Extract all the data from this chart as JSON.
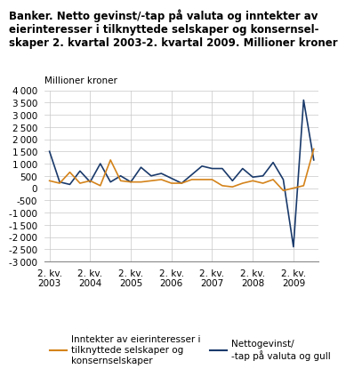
{
  "title_line1": "Banker. Netto gevinst/-tap på valuta og inntekter av",
  "title_line2": "eierinteresser i tilknyttede selskaper og konsernsel-",
  "title_line3": "skaper 2. kvartal 2003-2. kvartal 2009. Millioner kroner",
  "ylabel": "Millioner kroner",
  "ylim": [
    -3000,
    4000
  ],
  "yticks": [
    -3000,
    -2500,
    -2000,
    -1500,
    -1000,
    -500,
    0,
    500,
    1000,
    1500,
    2000,
    2500,
    3000,
    3500,
    4000
  ],
  "xtick_labels": [
    "2. kv.\n2003",
    "2. kv.\n2004",
    "2. kv.\n2005",
    "2. kv.\n2006",
    "2. kv.\n2007",
    "2. kv.\n2008",
    "2. kv.\n2009"
  ],
  "xtick_positions": [
    0,
    4,
    8,
    12,
    16,
    20,
    24
  ],
  "blue_line": {
    "label": "Nettogevinst/\n-tap på valuta og gull",
    "color": "#1a3a6b",
    "values": [
      1500,
      250,
      150,
      700,
      250,
      1000,
      250,
      500,
      250,
      850,
      500,
      600,
      400,
      200,
      550,
      900,
      800,
      800,
      300,
      800,
      450,
      500,
      1050,
      350,
      -2400,
      3600,
      1150
    ]
  },
  "orange_line": {
    "label": "Inntekter av eierinteresser i\ntilknyttede selskaper og\nkonsernselskaper",
    "color": "#d4831a",
    "values": [
      300,
      200,
      650,
      200,
      300,
      100,
      1150,
      300,
      250,
      250,
      300,
      350,
      200,
      200,
      350,
      350,
      350,
      100,
      50,
      200,
      300,
      200,
      350,
      -100,
      0,
      100,
      1600
    ]
  },
  "n_points": 27,
  "background_color": "#ffffff",
  "grid_color": "#c8c8c8",
  "title_fontsize": 8.5,
  "label_fontsize": 7.5,
  "tick_fontsize": 7.5,
  "legend_fontsize": 7.5
}
